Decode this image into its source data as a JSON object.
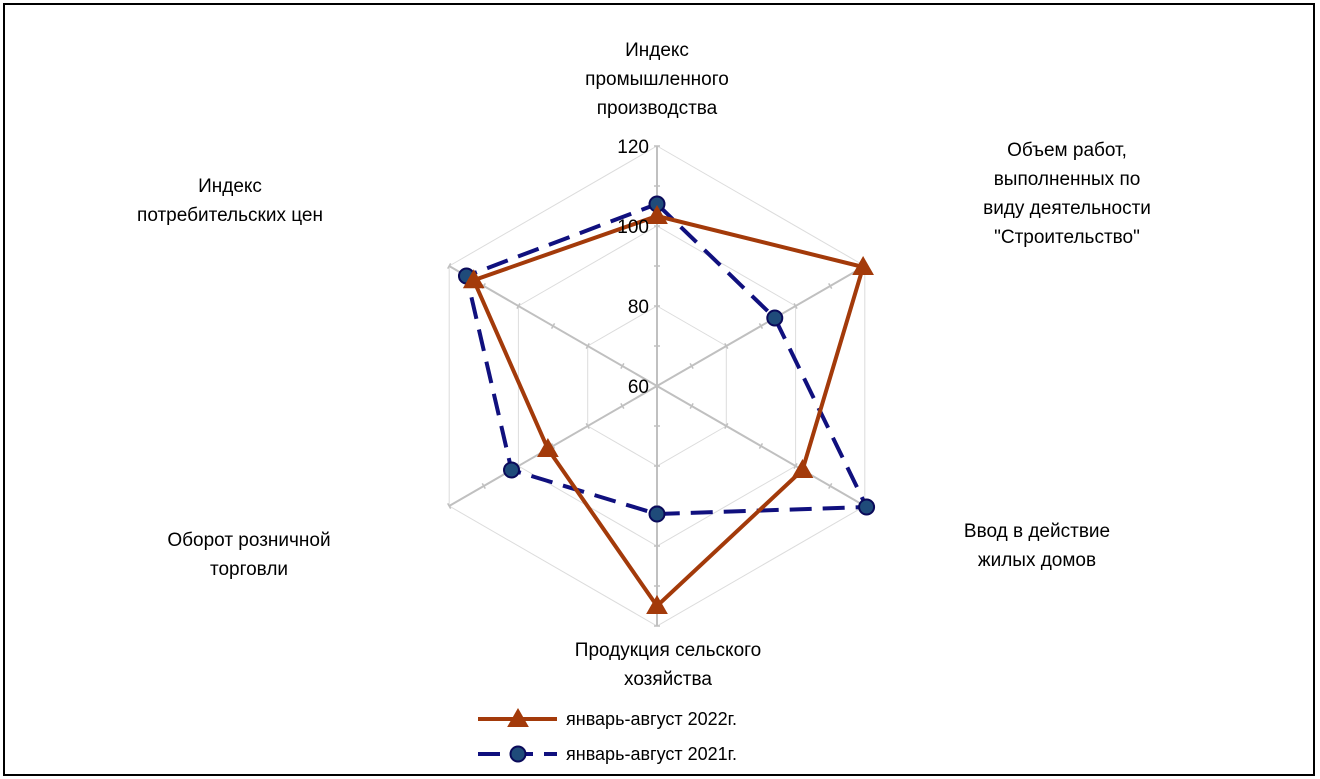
{
  "chart_data": {
    "type": "radar",
    "categories": [
      [
        "Индекс",
        "промышленного",
        "производства"
      ],
      [
        "Объем работ,",
        "выполненных  по",
        "виду деятельности",
        "\"Строительство\""
      ],
      [
        "Ввод в действие",
        "жилых домов"
      ],
      [
        "Продукция сельского",
        "хозяйства"
      ],
      [
        "Оборот розничной",
        "торговли"
      ],
      [
        "Индекс",
        "потребительских цен"
      ]
    ],
    "r_ticks": [
      "60",
      "80",
      "100",
      "120"
    ],
    "rlim": [
      60,
      120
    ],
    "grid": true,
    "legend_position": "bottom",
    "series": [
      {
        "name": "январь-август 2022г.",
        "values": [
          102.5,
          119.5,
          102.0,
          115.0,
          91.5,
          112.9
        ],
        "color": "#a33a0a",
        "line_style": "solid",
        "marker": "triangle"
      },
      {
        "name": "январь-август 2021г.",
        "values": [
          105.5,
          94.0,
          120.5,
          92.0,
          102.0,
          115.0
        ],
        "color": "#10107e",
        "line_style": "dashed",
        "marker": "circle"
      }
    ]
  }
}
